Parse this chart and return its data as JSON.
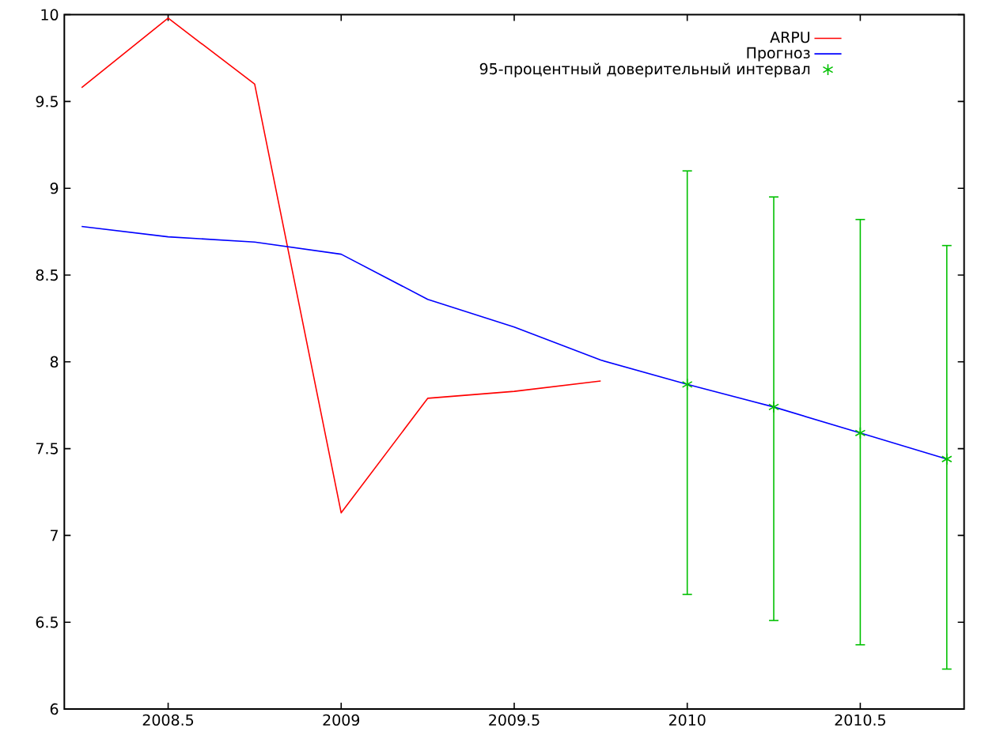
{
  "chart_data": {
    "type": "line",
    "xlim": [
      2008.2,
      2010.8
    ],
    "ylim": [
      6,
      10
    ],
    "xticks": [
      2008.5,
      2009,
      2009.5,
      2010,
      2010.5
    ],
    "yticks": [
      6,
      6.5,
      7,
      7.5,
      8,
      8.5,
      9,
      9.5,
      10
    ],
    "legend": "top right",
    "series": [
      {
        "name": "ARPU",
        "color": "#ff0000",
        "x": [
          2008.25,
          2008.5,
          2008.75,
          2009,
          2009.25,
          2009.5,
          2009.75
        ],
        "values": [
          9.58,
          9.98,
          9.6,
          7.13,
          7.79,
          7.83,
          7.89
        ]
      },
      {
        "name": "Прогноз",
        "color": "#0000ff",
        "x": [
          2008.25,
          2008.5,
          2008.75,
          2009,
          2009.25,
          2009.5,
          2009.75,
          2010,
          2010.25,
          2010.5,
          2010.75
        ],
        "values": [
          8.78,
          8.72,
          8.69,
          8.62,
          8.36,
          8.2,
          8.01,
          7.87,
          7.74,
          7.59,
          7.44
        ]
      },
      {
        "name": "95-процентный доверительный интервал",
        "type": "scatter",
        "marker": "cross",
        "color": "#00c000",
        "x": [
          2010,
          2010.25,
          2010.5,
          2010.75
        ],
        "values": [
          7.87,
          7.74,
          7.59,
          7.44
        ],
        "errors": [
          [
            6.66,
            9.1
          ],
          [
            6.51,
            8.95
          ],
          [
            6.37,
            8.82
          ],
          [
            6.23,
            8.67
          ]
        ]
      }
    ]
  }
}
